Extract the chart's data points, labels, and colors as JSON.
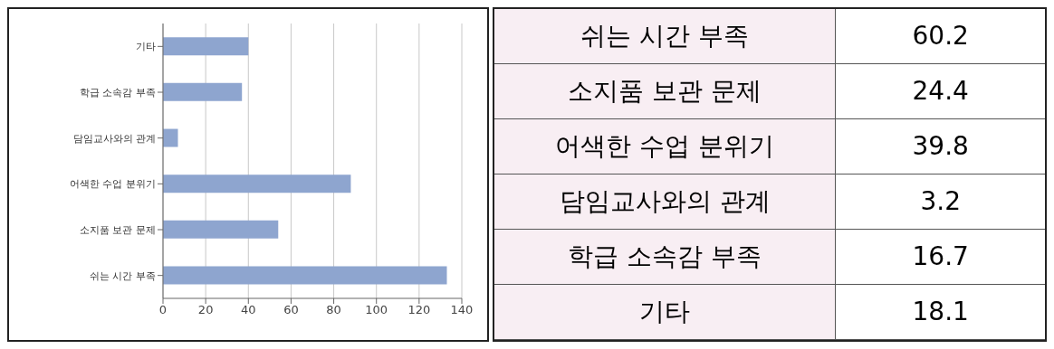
{
  "chart_data": [
    {
      "type": "bar",
      "orientation": "horizontal",
      "categories": [
        "기타",
        "학급 소속감 부족",
        "담임교사와의 관계",
        "어색한 수업 분위기",
        "소지품 보관 문제",
        "쉬는 시간 부족"
      ],
      "values": [
        40,
        37,
        7,
        88,
        54,
        133
      ],
      "color": "#8ea5cf",
      "xlim": [
        0,
        140
      ],
      "xticks": [
        0,
        20,
        40,
        60,
        80,
        100,
        120,
        140
      ],
      "grid": "x"
    },
    {
      "type": "other",
      "categories": [
        "쉬는 시간 부족",
        "소지품 보관 문제",
        "어색한 수업 분위기",
        "담임교사와의 관계",
        "학급 소속감 부족",
        "기타"
      ],
      "values": [
        60.2,
        24.4,
        39.8,
        3.2,
        16.7,
        18.1
      ],
      "data_labels": true
    }
  ]
}
